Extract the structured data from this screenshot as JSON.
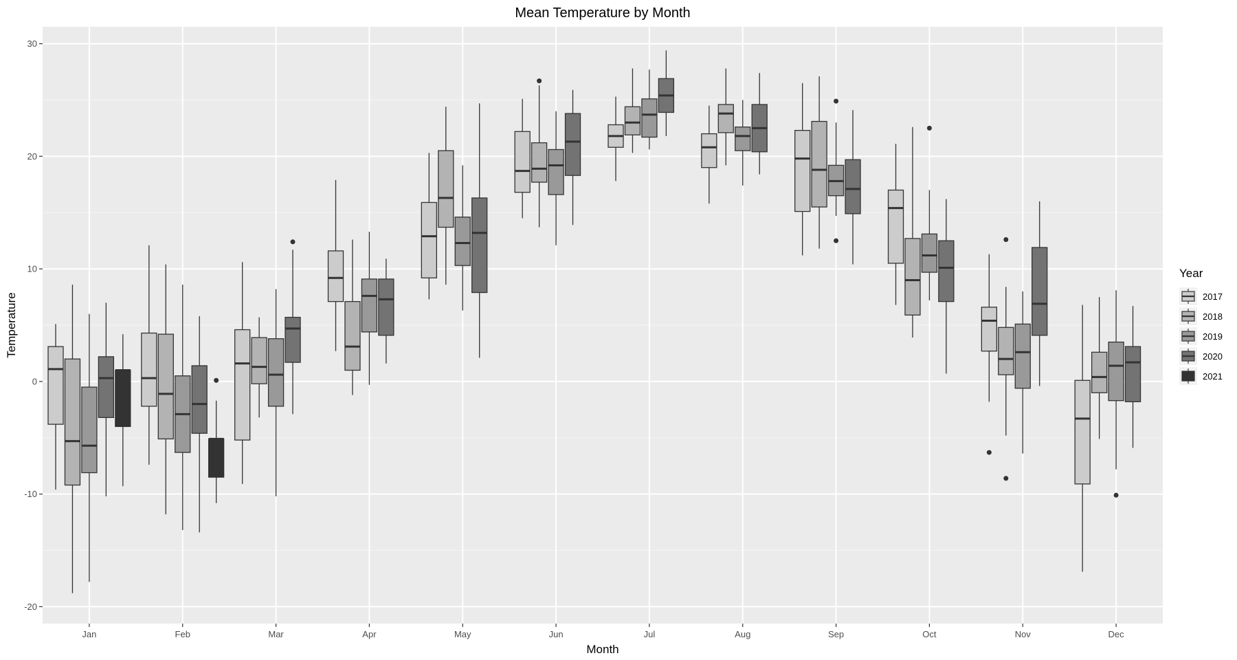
{
  "chart_data": {
    "type": "boxplot",
    "title": "Mean Temperature by Month",
    "xlabel": "Month",
    "ylabel": "Temperature",
    "ylim": [
      -21.5,
      31.5
    ],
    "yticks": [
      -20,
      -10,
      0,
      10,
      20,
      30
    ],
    "grid": true,
    "legend": {
      "title": "Year",
      "placement": "right"
    },
    "categories": [
      "Jan",
      "Feb",
      "Mar",
      "Apr",
      "May",
      "Jun",
      "Jul",
      "Aug",
      "Sep",
      "Oct",
      "Nov",
      "Dec"
    ],
    "series": [
      {
        "name": "2017",
        "color": "#cccccc",
        "boxes": [
          {
            "month": "Jan",
            "min": -9.6,
            "q1": -3.8,
            "median": 1.1,
            "q3": 3.1,
            "max": 5.1,
            "outliers": []
          },
          {
            "month": "Feb",
            "min": -7.4,
            "q1": -2.2,
            "median": 0.3,
            "q3": 4.3,
            "max": 12.1,
            "outliers": []
          },
          {
            "month": "Mar",
            "min": -9.1,
            "q1": -5.2,
            "median": 1.6,
            "q3": 4.6,
            "max": 10.6,
            "outliers": []
          },
          {
            "month": "Apr",
            "min": 2.7,
            "q1": 7.1,
            "median": 9.2,
            "q3": 11.6,
            "max": 17.9,
            "outliers": []
          },
          {
            "month": "May",
            "min": 7.3,
            "q1": 9.2,
            "median": 12.9,
            "q3": 15.9,
            "max": 20.3,
            "outliers": []
          },
          {
            "month": "Jun",
            "min": 14.5,
            "q1": 16.8,
            "median": 18.7,
            "q3": 22.2,
            "max": 25.1,
            "outliers": []
          },
          {
            "month": "Jul",
            "min": 17.8,
            "q1": 20.8,
            "median": 21.8,
            "q3": 22.8,
            "max": 25.3,
            "outliers": []
          },
          {
            "month": "Aug",
            "min": 15.8,
            "q1": 19.0,
            "median": 20.8,
            "q3": 22.0,
            "max": 24.5,
            "outliers": []
          },
          {
            "month": "Sep",
            "min": 11.2,
            "q1": 15.1,
            "median": 19.8,
            "q3": 22.3,
            "max": 26.5,
            "outliers": []
          },
          {
            "month": "Oct",
            "min": 6.8,
            "q1": 10.5,
            "median": 15.4,
            "q3": 17.0,
            "max": 21.1,
            "outliers": []
          },
          {
            "month": "Nov",
            "min": -1.8,
            "q1": 2.7,
            "median": 5.4,
            "q3": 6.6,
            "max": 11.3,
            "outliers": [
              -6.3
            ]
          },
          {
            "month": "Dec",
            "min": -16.9,
            "q1": -9.1,
            "median": -3.3,
            "q3": 0.1,
            "max": 6.8,
            "outliers": []
          }
        ]
      },
      {
        "name": "2018",
        "color": "#b3b3b3",
        "boxes": [
          {
            "month": "Jan",
            "min": -18.8,
            "q1": -9.2,
            "median": -5.3,
            "q3": 2.0,
            "max": 8.6,
            "outliers": []
          },
          {
            "month": "Feb",
            "min": -11.8,
            "q1": -5.1,
            "median": -1.1,
            "q3": 4.2,
            "max": 10.4,
            "outliers": []
          },
          {
            "month": "Mar",
            "min": -3.2,
            "q1": -0.2,
            "median": 1.3,
            "q3": 3.9,
            "max": 5.7,
            "outliers": []
          },
          {
            "month": "Apr",
            "min": -1.2,
            "q1": 1.0,
            "median": 3.1,
            "q3": 7.1,
            "max": 12.6,
            "outliers": []
          },
          {
            "month": "May",
            "min": 8.6,
            "q1": 13.7,
            "median": 16.3,
            "q3": 20.5,
            "max": 24.4,
            "outliers": []
          },
          {
            "month": "Jun",
            "min": 13.7,
            "q1": 17.7,
            "median": 18.9,
            "q3": 21.2,
            "max": 26.3,
            "outliers": [
              26.7
            ]
          },
          {
            "month": "Jul",
            "min": 20.3,
            "q1": 21.9,
            "median": 23.0,
            "q3": 24.4,
            "max": 27.8,
            "outliers": []
          },
          {
            "month": "Aug",
            "min": 19.2,
            "q1": 22.1,
            "median": 23.8,
            "q3": 24.6,
            "max": 27.8,
            "outliers": []
          },
          {
            "month": "Sep",
            "min": 11.8,
            "q1": 15.5,
            "median": 18.8,
            "q3": 23.1,
            "max": 27.1,
            "outliers": []
          },
          {
            "month": "Oct",
            "min": 3.9,
            "q1": 5.9,
            "median": 9.0,
            "q3": 12.7,
            "max": 22.6,
            "outliers": []
          },
          {
            "month": "Nov",
            "min": -4.8,
            "q1": 0.6,
            "median": 2.0,
            "q3": 4.8,
            "max": 8.4,
            "outliers": [
              12.6,
              -8.6
            ]
          },
          {
            "month": "Dec",
            "min": -5.1,
            "q1": -1.0,
            "median": 0.4,
            "q3": 2.6,
            "max": 7.5,
            "outliers": []
          }
        ]
      },
      {
        "name": "2019",
        "color": "#999999",
        "boxes": [
          {
            "month": "Jan",
            "min": -17.8,
            "q1": -8.1,
            "median": -5.7,
            "q3": -0.5,
            "max": 6.0,
            "outliers": []
          },
          {
            "month": "Feb",
            "min": -13.2,
            "q1": -6.3,
            "median": -2.9,
            "q3": 0.5,
            "max": 8.6,
            "outliers": []
          },
          {
            "month": "Mar",
            "min": -10.2,
            "q1": -2.2,
            "median": 0.6,
            "q3": 3.8,
            "max": 8.2,
            "outliers": []
          },
          {
            "month": "Apr",
            "min": -0.3,
            "q1": 4.4,
            "median": 7.6,
            "q3": 9.1,
            "max": 13.3,
            "outliers": []
          },
          {
            "month": "May",
            "min": 6.3,
            "q1": 10.3,
            "median": 12.3,
            "q3": 14.6,
            "max": 19.2,
            "outliers": []
          },
          {
            "month": "Jun",
            "min": 12.1,
            "q1": 16.6,
            "median": 19.2,
            "q3": 20.6,
            "max": 24.0,
            "outliers": []
          },
          {
            "month": "Jul",
            "min": 20.6,
            "q1": 21.7,
            "median": 23.7,
            "q3": 25.1,
            "max": 27.7,
            "outliers": []
          },
          {
            "month": "Aug",
            "min": 17.4,
            "q1": 20.5,
            "median": 21.8,
            "q3": 22.6,
            "max": 25.0,
            "outliers": []
          },
          {
            "month": "Sep",
            "min": 14.7,
            "q1": 16.5,
            "median": 17.8,
            "q3": 19.2,
            "max": 23.0,
            "outliers": [
              24.9,
              12.5
            ]
          },
          {
            "month": "Oct",
            "min": 7.2,
            "q1": 9.7,
            "median": 11.2,
            "q3": 13.1,
            "max": 17.0,
            "outliers": [
              22.5
            ]
          },
          {
            "month": "Nov",
            "min": -6.4,
            "q1": -0.6,
            "median": 2.6,
            "q3": 5.1,
            "max": 8.0,
            "outliers": []
          },
          {
            "month": "Dec",
            "min": -7.8,
            "q1": -1.7,
            "median": 1.4,
            "q3": 3.5,
            "max": 8.1,
            "outliers": [
              -10.1
            ]
          }
        ]
      },
      {
        "name": "2020",
        "color": "#737373",
        "boxes": [
          {
            "month": "Jan",
            "min": -10.2,
            "q1": -3.2,
            "median": 0.3,
            "q3": 2.2,
            "max": 7.0,
            "outliers": []
          },
          {
            "month": "Feb",
            "min": -13.4,
            "q1": -4.6,
            "median": -2.0,
            "q3": 1.4,
            "max": 5.8,
            "outliers": []
          },
          {
            "month": "Mar",
            "min": -2.9,
            "q1": 1.7,
            "median": 4.7,
            "q3": 5.7,
            "max": 11.7,
            "outliers": [
              12.4
            ]
          },
          {
            "month": "Apr",
            "min": 1.6,
            "q1": 4.1,
            "median": 7.3,
            "q3": 9.1,
            "max": 10.9,
            "outliers": []
          },
          {
            "month": "May",
            "min": 2.1,
            "q1": 7.9,
            "median": 13.2,
            "q3": 16.3,
            "max": 24.7,
            "outliers": []
          },
          {
            "month": "Jun",
            "min": 13.9,
            "q1": 18.3,
            "median": 21.3,
            "q3": 23.8,
            "max": 25.9,
            "outliers": []
          },
          {
            "month": "Jul",
            "min": 21.8,
            "q1": 23.9,
            "median": 25.4,
            "q3": 26.9,
            "max": 29.4,
            "outliers": []
          },
          {
            "month": "Aug",
            "min": 18.4,
            "q1": 20.4,
            "median": 22.5,
            "q3": 24.6,
            "max": 27.4,
            "outliers": []
          },
          {
            "month": "Sep",
            "min": 10.4,
            "q1": 14.9,
            "median": 17.1,
            "q3": 19.7,
            "max": 24.1,
            "outliers": []
          },
          {
            "month": "Oct",
            "min": 0.7,
            "q1": 7.1,
            "median": 10.1,
            "q3": 12.5,
            "max": 16.2,
            "outliers": []
          },
          {
            "month": "Nov",
            "min": -0.4,
            "q1": 4.1,
            "median": 6.9,
            "q3": 11.9,
            "max": 16.0,
            "outliers": []
          },
          {
            "month": "Dec",
            "min": -5.9,
            "q1": -1.8,
            "median": 1.7,
            "q3": 3.1,
            "max": 6.7,
            "outliers": []
          }
        ]
      },
      {
        "name": "2021",
        "color": "#333333",
        "boxes": [
          {
            "month": "Jan",
            "min": -9.3,
            "q1": -4.0,
            "median": 1.0,
            "q3": 1.0,
            "max": 4.2,
            "outliers": []
          },
          {
            "month": "Feb",
            "min": -10.8,
            "q1": -8.5,
            "median": -5.1,
            "q3": -5.1,
            "max": -1.7,
            "outliers": [
              0.1
            ]
          }
        ]
      }
    ]
  }
}
